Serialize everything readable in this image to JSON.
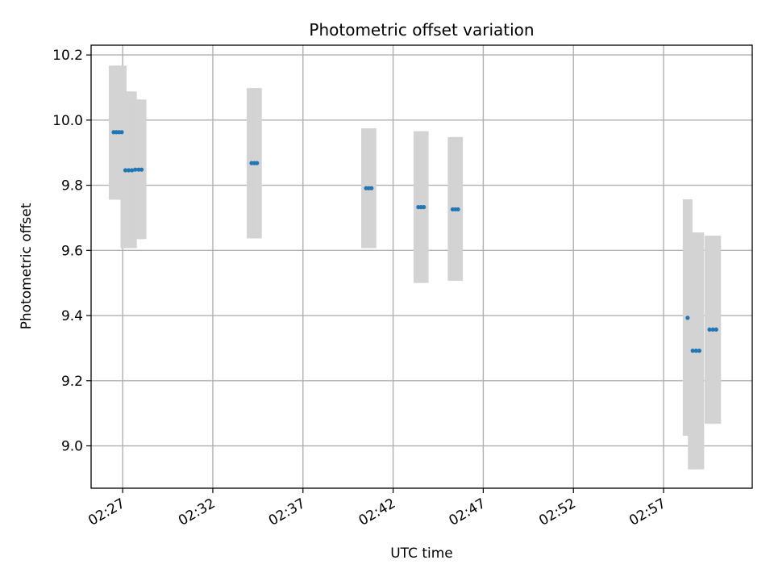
{
  "chart_data": {
    "type": "scatter",
    "title": "Photometric offset variation",
    "xlabel": "UTC time",
    "ylabel": "Photometric offset",
    "x_unit": "UTC time (HH:MM)",
    "xlim": [
      "02:25:15",
      "02:61:55"
    ],
    "ylim": [
      8.87,
      10.23
    ],
    "x_ticks": [
      "02:27",
      "02:32",
      "02:37",
      "02:42",
      "02:47",
      "02:52",
      "02:57"
    ],
    "y_ticks": [
      "9.0",
      "9.2",
      "9.4",
      "9.6",
      "9.8",
      "10.0",
      "10.2"
    ],
    "grid": true,
    "errorbar_color": "#d3d3d3",
    "marker_color": "#1f77b4",
    "points": [
      {
        "time": "02:26:30",
        "y": 9.963,
        "err_low": 9.756,
        "err_high": 10.167
      },
      {
        "time": "02:26:39",
        "y": 9.963,
        "err_low": 9.756,
        "err_high": 10.167
      },
      {
        "time": "02:26:48",
        "y": 9.963,
        "err_low": 9.756,
        "err_high": 10.167
      },
      {
        "time": "02:26:57",
        "y": 9.963,
        "err_low": 9.756,
        "err_high": 10.167
      },
      {
        "time": "02:27:09",
        "y": 9.846,
        "err_low": 9.607,
        "err_high": 10.088
      },
      {
        "time": "02:27:20",
        "y": 9.846,
        "err_low": 9.607,
        "err_high": 10.088
      },
      {
        "time": "02:27:31",
        "y": 9.846,
        "err_low": 9.607,
        "err_high": 10.088
      },
      {
        "time": "02:27:42",
        "y": 9.848,
        "err_low": 9.635,
        "err_high": 10.063
      },
      {
        "time": "02:27:53",
        "y": 9.848,
        "err_low": 9.635,
        "err_high": 10.063
      },
      {
        "time": "02:28:03",
        "y": 9.848,
        "err_low": 9.635,
        "err_high": 10.063
      },
      {
        "time": "02:34:09",
        "y": 9.868,
        "err_low": 9.637,
        "err_high": 10.098
      },
      {
        "time": "02:34:18",
        "y": 9.868,
        "err_low": 9.637,
        "err_high": 10.098
      },
      {
        "time": "02:34:27",
        "y": 9.868,
        "err_low": 9.637,
        "err_high": 10.098
      },
      {
        "time": "02:40:30",
        "y": 9.791,
        "err_low": 9.607,
        "err_high": 9.975
      },
      {
        "time": "02:40:39",
        "y": 9.791,
        "err_low": 9.607,
        "err_high": 9.975
      },
      {
        "time": "02:40:48",
        "y": 9.791,
        "err_low": 9.607,
        "err_high": 9.975
      },
      {
        "time": "02:43:24",
        "y": 9.733,
        "err_low": 9.5,
        "err_high": 9.966
      },
      {
        "time": "02:43:33",
        "y": 9.733,
        "err_low": 9.5,
        "err_high": 9.966
      },
      {
        "time": "02:43:42",
        "y": 9.733,
        "err_low": 9.5,
        "err_high": 9.966
      },
      {
        "time": "02:45:18",
        "y": 9.726,
        "err_low": 9.507,
        "err_high": 9.948
      },
      {
        "time": "02:45:27",
        "y": 9.726,
        "err_low": 9.507,
        "err_high": 9.948
      },
      {
        "time": "02:45:36",
        "y": 9.726,
        "err_low": 9.507,
        "err_high": 9.948
      },
      {
        "time": "02:58:20",
        "y": 9.393,
        "err_low": 9.031,
        "err_high": 9.757
      },
      {
        "time": "02:58:37",
        "y": 9.292,
        "err_low": 8.928,
        "err_high": 9.655
      },
      {
        "time": "02:58:48",
        "y": 9.292,
        "err_low": 8.928,
        "err_high": 9.655
      },
      {
        "time": "02:58:59",
        "y": 9.292,
        "err_low": 8.928,
        "err_high": 9.655
      },
      {
        "time": "02:59:33",
        "y": 9.357,
        "err_low": 9.068,
        "err_high": 9.645
      },
      {
        "time": "02:59:44",
        "y": 9.357,
        "err_low": 9.068,
        "err_high": 9.645
      },
      {
        "time": "02:59:55",
        "y": 9.357,
        "err_low": 9.068,
        "err_high": 9.645
      }
    ]
  }
}
